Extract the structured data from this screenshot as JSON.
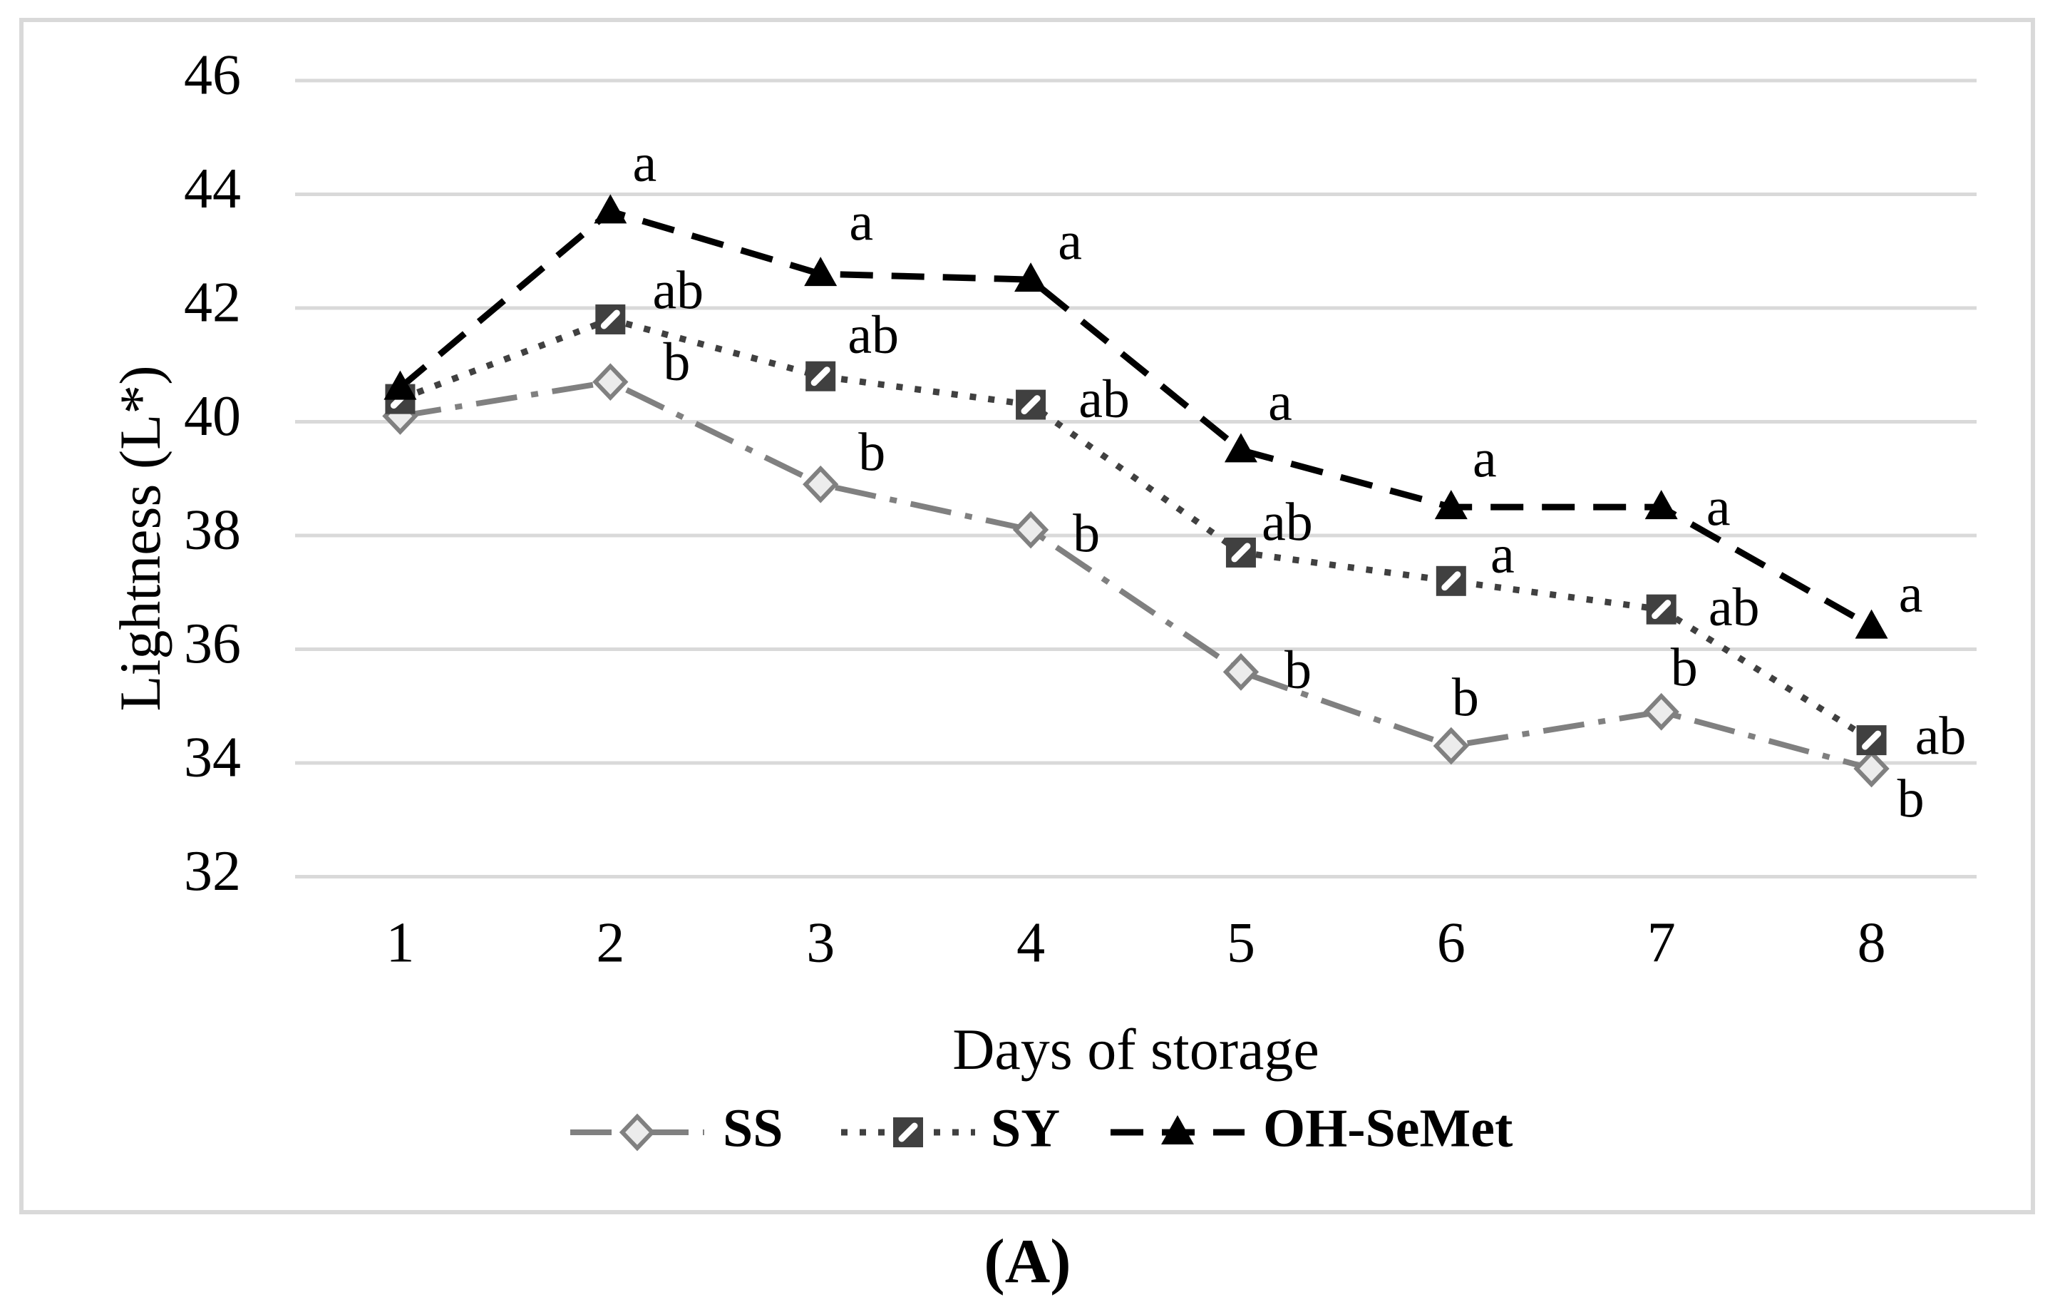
{
  "figure": {
    "caption": "(A)",
    "background_color": "#ffffff",
    "frame_color": "#d9d9d9",
    "gridline_color": "#d9d9d9"
  },
  "chart_data": {
    "type": "line",
    "title": "",
    "xlabel": "Days of storage",
    "ylabel": "Lightness (L*)",
    "x": [
      1,
      2,
      3,
      4,
      5,
      6,
      7,
      8
    ],
    "xticklabels": [
      "1",
      "2",
      "3",
      "4",
      "5",
      "6",
      "7",
      "8"
    ],
    "ylim": [
      32,
      46
    ],
    "yticks": [
      46,
      44,
      42,
      40,
      38,
      36,
      34,
      32
    ],
    "grid": true,
    "legend_position": "bottom",
    "series": [
      {
        "name": "SS",
        "color": "#808080",
        "line_style": "dash-dot",
        "marker": "diamond",
        "values": [
          40.1,
          40.7,
          38.9,
          38.1,
          35.6,
          34.3,
          34.9,
          33.9
        ],
        "point_labels": [
          "",
          "b",
          "b",
          "b",
          "b",
          "b",
          "b",
          "b"
        ]
      },
      {
        "name": "SY",
        "color": "#404040",
        "line_style": "dotted",
        "marker": "square",
        "values": [
          40.4,
          41.8,
          40.8,
          40.3,
          37.7,
          37.2,
          36.7,
          34.4
        ],
        "point_labels": [
          "",
          "ab",
          "ab",
          "ab",
          "ab",
          "a",
          "ab",
          "ab"
        ]
      },
      {
        "name": "OH-SeMet",
        "color": "#000000",
        "line_style": "dashed",
        "marker": "triangle",
        "values": [
          40.6,
          43.7,
          42.6,
          42.5,
          39.5,
          38.5,
          38.5,
          36.4
        ],
        "point_labels": [
          "",
          "a",
          "a",
          "a",
          "a",
          "a",
          "a",
          "a"
        ]
      }
    ]
  }
}
